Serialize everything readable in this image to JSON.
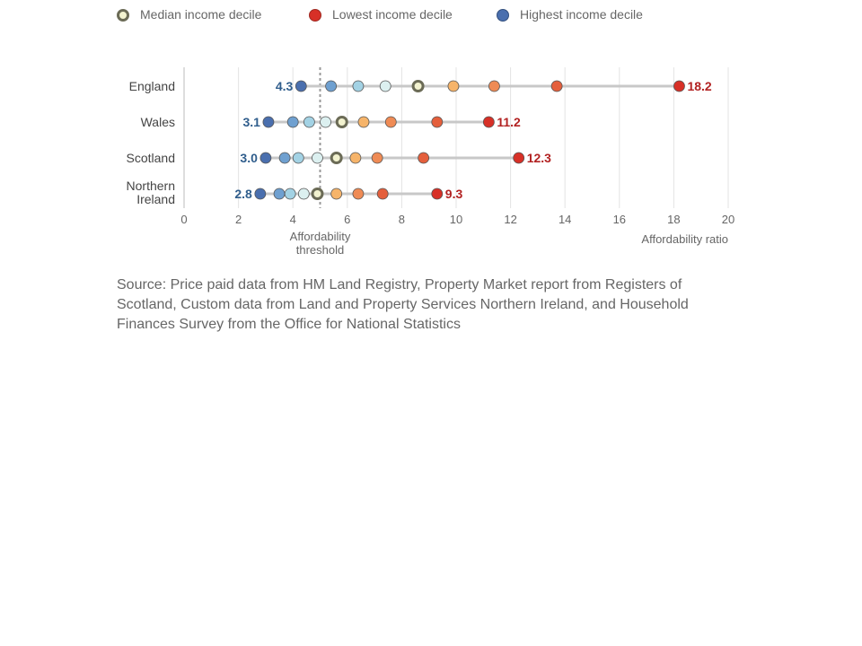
{
  "legend": {
    "median": "Median income decile",
    "lowest": "Lowest income decile",
    "highest": "Highest income decile"
  },
  "colors": {
    "deciles_highest_to_lowest": [
      "#4a6fae",
      "#6fa0d0",
      "#a3d2e4",
      "#dcf0f0",
      "#f2f2cf",
      "#fbdc8a",
      "#f6b46a",
      "#ef8b55",
      "#e45f3c",
      "#d73027"
    ],
    "median_fill": "#f2f2cf",
    "median_stroke": "#6b6b56",
    "range_line": "#c8c8c8",
    "threshold_line": "#999999",
    "low_label": "#2f5d8c",
    "high_label": "#b22222"
  },
  "chart_data": {
    "type": "dot-range",
    "xlabel": "Affordability ratio",
    "xlim": [
      0,
      20
    ],
    "xticks": [
      "0",
      "2",
      "4",
      "6",
      "8",
      "10",
      "12",
      "14",
      "16",
      "18",
      "20"
    ],
    "threshold": {
      "value": 5,
      "label_lines": [
        "Affordability",
        "threshold"
      ]
    },
    "series_order_note_free": true,
    "categories": [
      {
        "name_lines": [
          "England"
        ],
        "values": [
          4.3,
          5.4,
          6.4,
          7.4,
          8.6,
          9.9,
          11.4,
          13.7,
          18.2
        ],
        "median_index": 4,
        "min_label": "4.3",
        "max_label": "18.2"
      },
      {
        "name_lines": [
          "Wales"
        ],
        "values": [
          3.1,
          4.0,
          4.6,
          5.2,
          5.8,
          6.6,
          7.6,
          9.3,
          11.2
        ],
        "median_index": 4,
        "min_label": "3.1",
        "max_label": "11.2"
      },
      {
        "name_lines": [
          "Scotland"
        ],
        "values": [
          3.0,
          3.7,
          4.2,
          4.9,
          5.6,
          6.3,
          7.1,
          8.8,
          12.3
        ],
        "median_index": 4,
        "min_label": "3.0",
        "max_label": "12.3"
      },
      {
        "name_lines": [
          "Northern",
          "Ireland"
        ],
        "values": [
          2.8,
          3.5,
          3.9,
          4.4,
          4.9,
          5.6,
          6.4,
          7.3,
          9.3
        ],
        "median_index": 4,
        "min_label": "2.8",
        "max_label": "9.3"
      }
    ]
  },
  "source_text": "Source: Price paid data from HM Land Registry, Property Market report from Registers of Scotland, Custom data from Land and Property Services Northern Ireland, and Household Finances Survey from the Office for National Statistics"
}
